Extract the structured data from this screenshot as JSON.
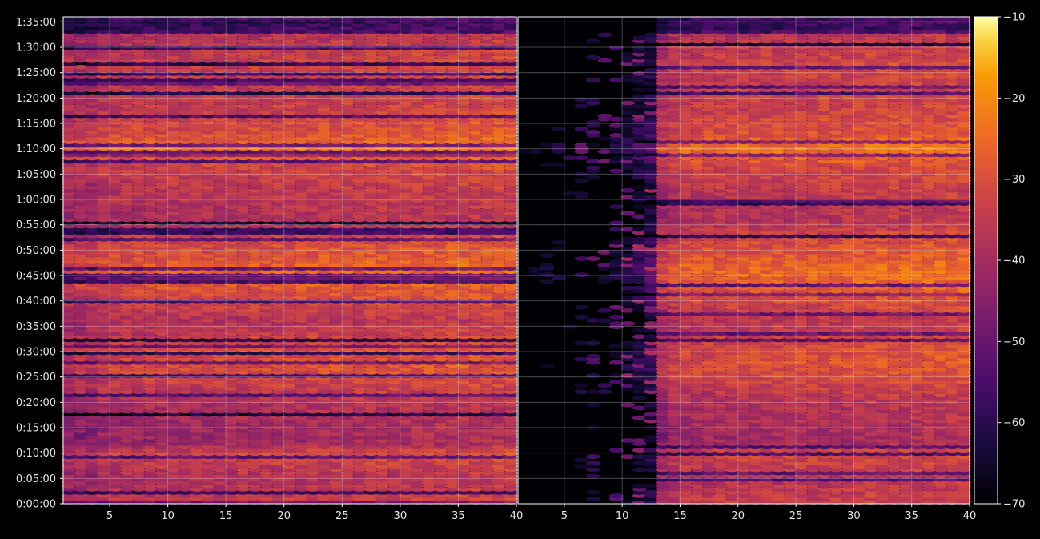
{
  "chart_data": {
    "type": "heatmap",
    "title": "",
    "xlabel": "",
    "ylabel": "",
    "colormap": "inferno",
    "background": "#000000",
    "grid": true,
    "panels": [
      {
        "name": "",
        "xlim": [
          1,
          40
        ],
        "x_ticks": [
          5,
          10,
          15,
          20,
          25,
          30,
          35,
          40
        ],
        "x_tick_labels": [
          "5",
          "10",
          "15",
          "20",
          "25",
          "30",
          "35",
          "40"
        ]
      },
      {
        "name": "",
        "xlim": [
          1,
          40
        ],
        "x_ticks": [
          5,
          10,
          15,
          20,
          25,
          30,
          35,
          40
        ],
        "x_tick_labels": [
          "5",
          "10",
          "15",
          "20",
          "25",
          "30",
          "35",
          "40"
        ]
      }
    ],
    "ylim_seconds": [
      0,
      5760
    ],
    "y_tick_labels": [
      "0:00:00",
      "0:05:00",
      "0:10:00",
      "0:15:00",
      "0:20:00",
      "0:25:00",
      "0:30:00",
      "0:35:00",
      "0:40:00",
      "0:45:00",
      "0:50:00",
      "0:55:00",
      "1:00:00",
      "1:05:00",
      "1:10:00",
      "1:15:00",
      "1:20:00",
      "1:25:00",
      "1:30:00",
      "1:35:00"
    ],
    "colorbar": {
      "range": [
        -70,
        -10
      ],
      "ticks": [
        -70,
        -60,
        -50,
        -40,
        -30,
        -20,
        -10
      ],
      "tick_labels": [
        "−70",
        "−60",
        "−50",
        "−40",
        "−30",
        "−20",
        "−10"
      ]
    },
    "row_profile_minutes": [
      0,
      5,
      10,
      12,
      20,
      27,
      32,
      36,
      43,
      46,
      52,
      56,
      61,
      66,
      70,
      73,
      78,
      83,
      87,
      93
    ],
    "row_profile_levels": [
      -34,
      -38,
      -32,
      -41,
      -38,
      -30,
      -33,
      -37,
      -28,
      -26,
      -32,
      -38,
      -36,
      -33,
      -24,
      -30,
      -34,
      -35,
      -33,
      -38
    ]
  }
}
